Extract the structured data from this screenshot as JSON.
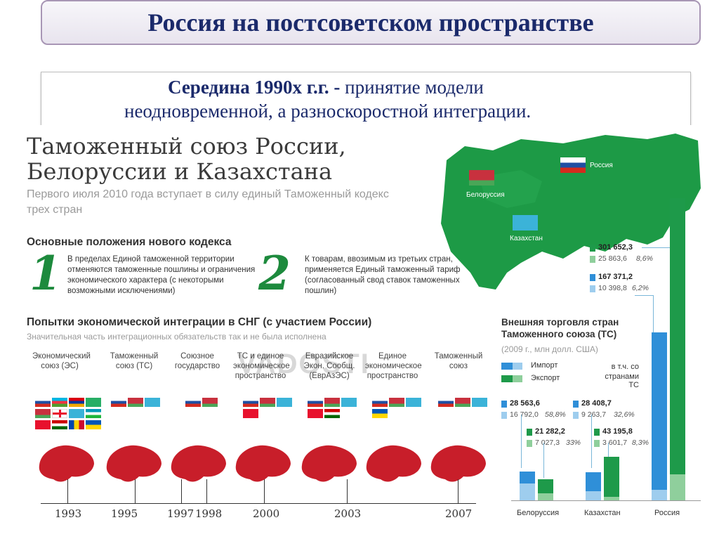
{
  "slide": {
    "title": "Россия на постсоветском пространстве",
    "subtitle_bold": "Середина 1990х г.г. -",
    "subtitle_rest": " принятие модели",
    "subtitle_line2": "неодновременной, а разноскоростной интеграции."
  },
  "infographic": {
    "heading_line1": "Таможенный союз России,",
    "heading_line2": "Белоруссии и Казахстана",
    "intro": "Первого июля 2010 года вступает в силу единый Таможенный кодекс трех стран",
    "section1_title": "Основные положения нового кодекса",
    "point1_num": "1",
    "point1_text": "В пределах Единой таможенной территории отменяются таможенные пошлины и ограничения экономического характера (с некоторыми возможными исключениями)",
    "point2_num": "2",
    "point2_text": "К товарам, ввозимым из третьих стран, применяется Единый таможенный тариф (согласованный свод ставок таможенных пошлин)",
    "section2_title": "Попытки экономической интеграции в СНГ (с участием России)",
    "section2_note": "Значительная часть интеграционных обязательств так и не была исполнена",
    "columns": [
      {
        "label": "Экономический союз (ЭС)"
      },
      {
        "label": "Таможенный союз (ТС)"
      },
      {
        "label": "Союзное государство"
      },
      {
        "label": "ТС и единое экономическое пространство"
      },
      {
        "label": "Евразийское Экон. Сообщ. (ЕврАзЭС)"
      },
      {
        "label": "Единое экономическое пространство"
      },
      {
        "label": "Таможенный союз"
      }
    ],
    "years": [
      "1993",
      "1995",
      "1997",
      "1998",
      "2000",
      "2003",
      "2007"
    ],
    "map_labels": {
      "russia": "Россия",
      "belarus": "Белоруссия",
      "kazakhstan": "Казахстан"
    },
    "watermark": "VADOSTI"
  },
  "trade": {
    "title_line1": "Внешняя торговля стран",
    "title_line2": "Таможенного союза (ТС)",
    "note": "(2009 г., млн долл. США)",
    "legend_import": "Импорт",
    "legend_export": "Экспорт",
    "legend_cis_line1": "в т.ч. со",
    "legend_cis_line2": "странами ТС",
    "colors": {
      "import": "#2f8fd8",
      "import_light": "#9ecdee",
      "export": "#1e9a4a",
      "export_light": "#8fcf9c"
    },
    "countries": [
      {
        "name": "Белоруссия",
        "import_total": "28 563,6",
        "import_cis": "16 792,0",
        "import_share": "58,8%",
        "export_total": "21 282,2",
        "export_cis": "7 027,3",
        "export_share": "33%"
      },
      {
        "name": "Казахстан",
        "import_total": "28 408,7",
        "import_cis": "9 263,7",
        "import_share": "32,6%",
        "export_total": "43 195,8",
        "export_cis": "3 601,7",
        "export_share": "8,3%"
      },
      {
        "name": "Россия",
        "import_total": "167 371,2",
        "import_cis": "10 398,8",
        "import_share": "6,2%",
        "export_total": "301 652,3",
        "export_cis": "25 863,6",
        "export_share": "8,6%"
      }
    ]
  }
}
